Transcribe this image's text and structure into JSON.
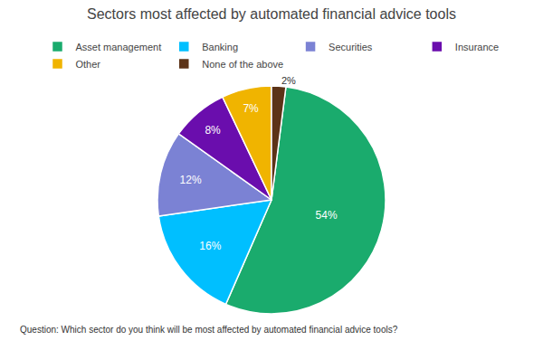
{
  "chart_data": {
    "type": "pie",
    "title": "Sectors most affected by automated financial advice tools",
    "annotations": [
      "Question: Which sector do you think will be most affected by automated financial advice tools?"
    ],
    "categories": [
      "Asset management",
      "Banking",
      "Securities",
      "Insurance",
      "Other",
      "None of the above"
    ],
    "values": [
      54,
      16,
      12,
      8,
      7,
      2
    ],
    "value_labels": [
      "54%",
      "16%",
      "12%",
      "8%",
      "7%",
      "2%"
    ],
    "colors": [
      "#1aab6d",
      "#00bfff",
      "#7b82d4",
      "#6a0dad",
      "#f0b400",
      "#5c3317"
    ],
    "data_labels": true,
    "legend": "top"
  }
}
